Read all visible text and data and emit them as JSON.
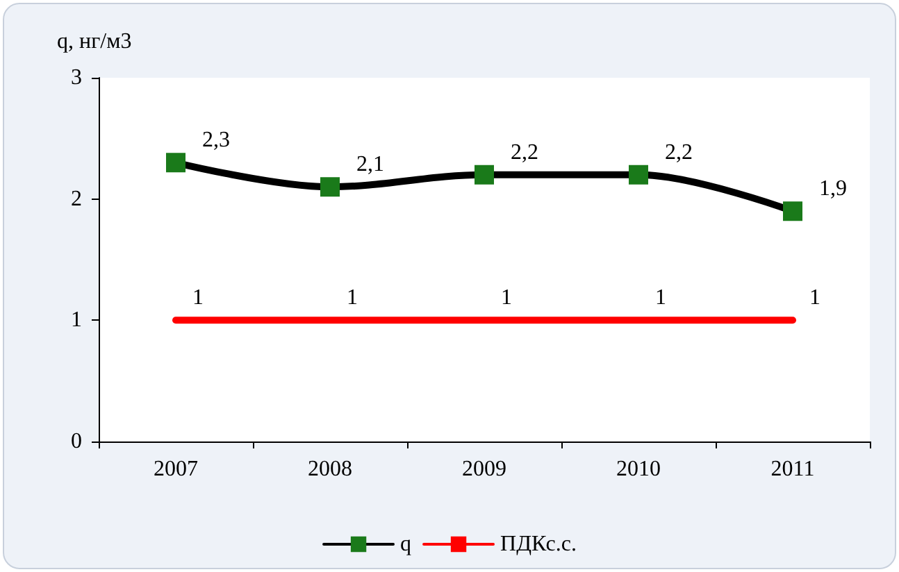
{
  "chart_data": {
    "type": "line",
    "ylabel": "q, нг/м3",
    "categories": [
      "2007",
      "2008",
      "2009",
      "2010",
      "2011"
    ],
    "series": [
      {
        "name": "q",
        "color": "#000000",
        "marker": "square",
        "colors": [
          "#1a7a1a",
          "#1a7a1a",
          "#1a7a1a",
          "#1a7a1a",
          "#1a7a1a"
        ],
        "values": [
          2.3,
          2.1,
          2.2,
          2.2,
          1.9
        ],
        "value_labels": [
          "2,3",
          "2,1",
          "2,2",
          "2,2",
          "1,9"
        ]
      },
      {
        "name": "ПДКс.с.",
        "color": "#ff0000",
        "marker": "none",
        "values": [
          1,
          1,
          1,
          1,
          1
        ],
        "value_labels": [
          "1",
          "1",
          "1",
          "1",
          "1"
        ]
      }
    ],
    "ylim": [
      0,
      3
    ],
    "yticks": [
      0,
      1,
      2,
      3
    ],
    "grid": false,
    "legend": "bottom",
    "line_style": "solid"
  }
}
